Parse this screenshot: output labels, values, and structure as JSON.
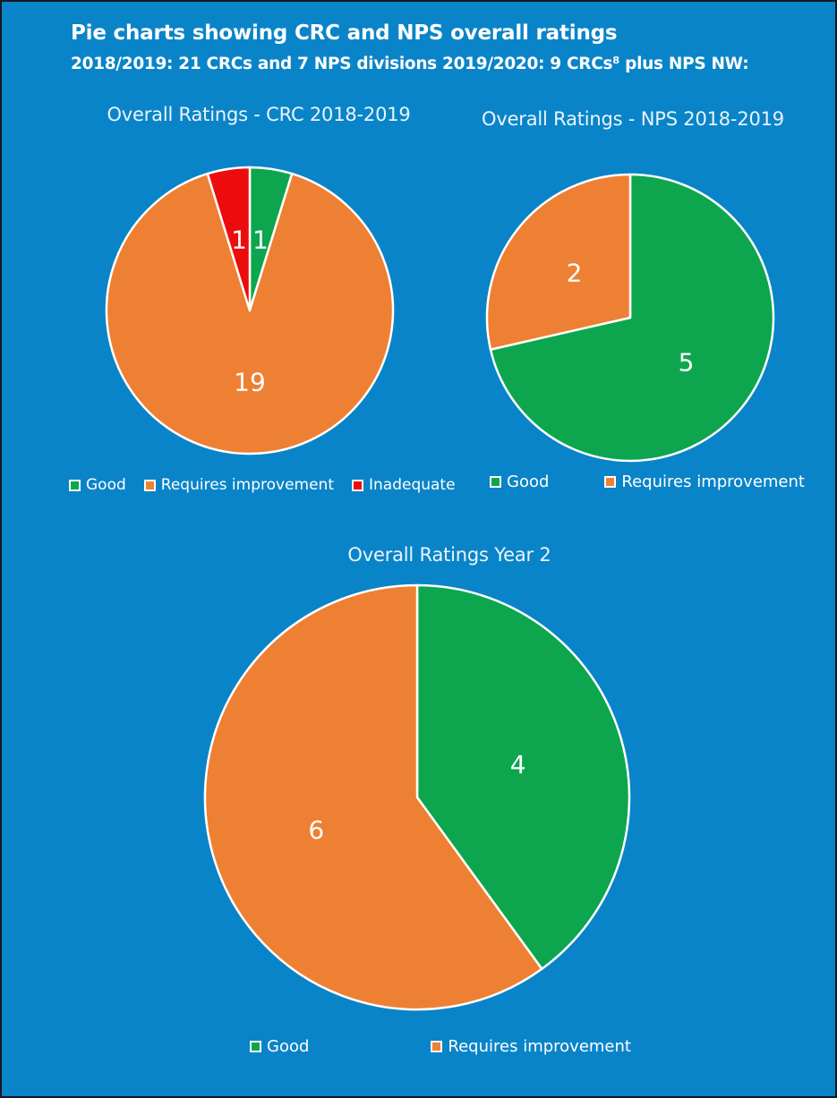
{
  "page": {
    "title": "Pie charts showing CRC and NPS overall ratings",
    "subtitle": "2018/2019: 21 CRCs and 7 NPS divisions 2019/2020: 9 CRCs⁸ plus NPS NW:"
  },
  "colors": {
    "background": "#0A84C8",
    "border": "#141821",
    "text": "#FFFFFF",
    "good": "#0DA64E",
    "requires_improvement": "#EE8033",
    "inadequate": "#ED0C0C"
  },
  "chart_data": [
    {
      "type": "pie",
      "title": "Overall Ratings - CRC 2018-2019",
      "start_angle_deg": 0,
      "direction": "clockwise",
      "legend_position": "bottom",
      "slices": [
        {
          "label": "Good",
          "value": 1,
          "color_key": "good"
        },
        {
          "label": "Requires improvement",
          "value": 19,
          "color_key": "requires_improvement"
        },
        {
          "label": "Inadequate",
          "value": 1,
          "color_key": "inadequate"
        }
      ]
    },
    {
      "type": "pie",
      "title": "Overall Ratings - NPS 2018-2019",
      "start_angle_deg": 0,
      "direction": "clockwise",
      "legend_position": "bottom",
      "slices": [
        {
          "label": "Good",
          "value": 5,
          "color_key": "good"
        },
        {
          "label": "Requires improvement",
          "value": 2,
          "color_key": "requires_improvement"
        }
      ]
    },
    {
      "type": "pie",
      "title": "Overall Ratings Year 2",
      "start_angle_deg": 0,
      "direction": "clockwise",
      "legend_position": "bottom",
      "slices": [
        {
          "label": "Good",
          "value": 4,
          "color_key": "good"
        },
        {
          "label": "Requires improvement",
          "value": 6,
          "color_key": "requires_improvement"
        }
      ]
    }
  ]
}
